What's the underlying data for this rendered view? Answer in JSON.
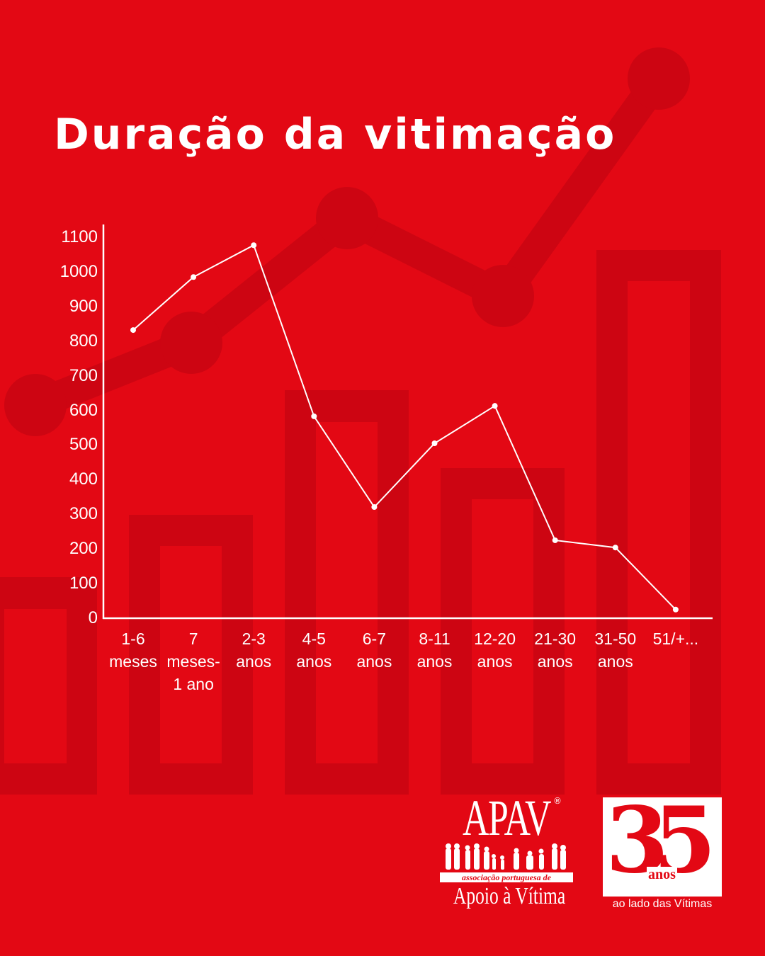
{
  "header": {
    "title": "Duração da vitimação"
  },
  "colors": {
    "background": "#e30814",
    "decoration": "#cd0512",
    "foreground": "#ffffff"
  },
  "chart_data": {
    "type": "line",
    "title": "Duração da vitimação",
    "xlabel": "",
    "ylabel": "",
    "categories": [
      "1-6 meses",
      "7 meses-1 ano",
      "2-3 anos",
      "4-5 anos",
      "6-7 anos",
      "8-11 anos",
      "12-20 anos",
      "21-30 anos",
      "31-50 anos",
      "51/+..."
    ],
    "category_lines": [
      [
        "1-6",
        "meses"
      ],
      [
        "7",
        "meses-",
        "1 ano"
      ],
      [
        "2-3",
        "anos"
      ],
      [
        "4-5",
        "anos"
      ],
      [
        "6-7",
        "anos"
      ],
      [
        "8-11",
        "anos"
      ],
      [
        "12-20",
        "anos"
      ],
      [
        "21-30",
        "anos"
      ],
      [
        "31-50",
        "anos"
      ],
      [
        "51/+..."
      ]
    ],
    "values": [
      832,
      985,
      1077,
      583,
      321,
      505,
      613,
      225,
      204,
      25
    ],
    "yticks": [
      0,
      100,
      200,
      300,
      400,
      500,
      600,
      700,
      800,
      900,
      1000,
      1100
    ],
    "ylim": [
      0,
      1100
    ],
    "grid": false,
    "legend": null,
    "marker": "circle",
    "line_color": "#ffffff"
  },
  "logos": {
    "apav": {
      "name": "APAV",
      "registered": "®",
      "subtitle": "associação portuguesa de",
      "tagline": "Apoio à Vítima"
    },
    "anniversary": {
      "number": "35",
      "unit": "anos",
      "tagline": "ao lado das Vítimas"
    }
  }
}
